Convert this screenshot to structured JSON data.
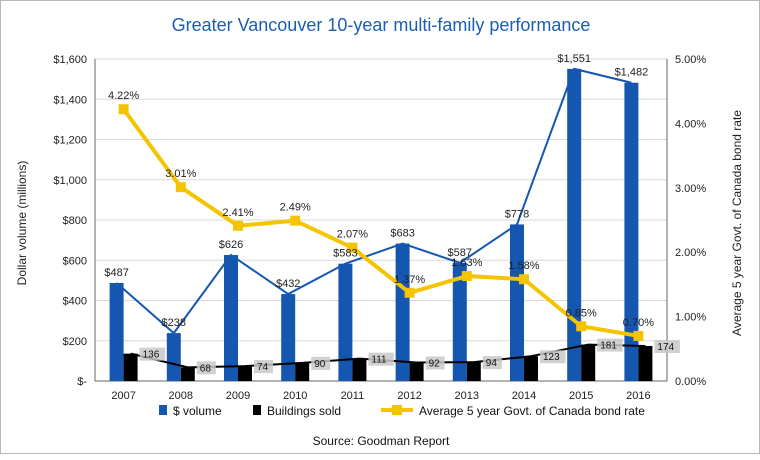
{
  "chart_data": {
    "type": "bar",
    "title": "Greater Vancouver 10-year multi-family performance",
    "source": "Source: Goodman Report",
    "categories": [
      "2007",
      "2008",
      "2009",
      "2010",
      "2011",
      "2012",
      "2013",
      "2014",
      "2015",
      "2016"
    ],
    "ylabel_left": "Dollar volume (millions)",
    "ylabel_right": "Average 5 year Govt. of Canada bond rate",
    "ylim_left": [
      0,
      1600
    ],
    "ylim_right": [
      0,
      5
    ],
    "left_ticks": [
      "$-",
      "$200",
      "$400",
      "$600",
      "$800",
      "$1,000",
      "$1,200",
      "$1,400",
      "$1,600"
    ],
    "right_ticks": [
      "0.00%",
      "1.00%",
      "2.00%",
      "3.00%",
      "4.00%",
      "5.00%"
    ],
    "grid": true,
    "legend_position": "bottom",
    "series": [
      {
        "name": "$ volume",
        "kind": "bar",
        "axis": "left",
        "color": "#1557b0",
        "values": [
          487,
          238,
          626,
          432,
          583,
          683,
          587,
          778,
          1551,
          1482
        ],
        "labels": [
          "$487",
          "$238",
          "$626",
          "$432",
          "$583",
          "$683",
          "$587",
          "$778",
          "$1,551",
          "$1,482"
        ]
      },
      {
        "name": "Buildings sold",
        "kind": "bar",
        "axis": "left",
        "color": "#000000",
        "values": [
          136,
          68,
          74,
          90,
          111,
          92,
          94,
          123,
          181,
          174
        ],
        "labels": [
          "136",
          "68",
          "74",
          "90",
          "111",
          "92",
          "94",
          "123",
          "181",
          "174"
        ]
      },
      {
        "name": "Average 5 year Govt. of Canada bond rate",
        "kind": "line",
        "axis": "right",
        "color": "#f5c400",
        "values": [
          4.22,
          3.01,
          2.41,
          2.49,
          2.07,
          1.37,
          1.63,
          1.58,
          0.85,
          0.7
        ],
        "labels": [
          "4.22%",
          "3.01%",
          "2.41%",
          "2.49%",
          "2.07%",
          "1.37%",
          "1.63%",
          "1.58%",
          "0.85%",
          "0.70%"
        ]
      }
    ]
  },
  "colors": {
    "title": "#1a5fb4",
    "volume_bar": "#1557b0",
    "volume_line": "#1557b0",
    "buildings_bar": "#000000",
    "buildings_line": "#000000",
    "rate_line": "#f5c400",
    "grid": "#d9d9d9",
    "label_box": "#c8c8c8"
  }
}
